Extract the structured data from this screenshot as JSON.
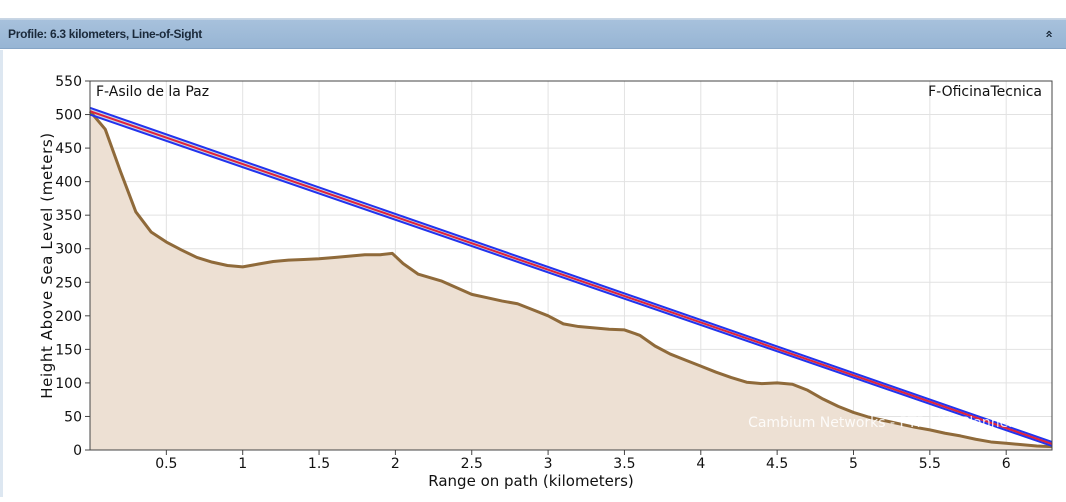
{
  "panel": {
    "title": "Profile: 6.3 kilometers, Line-of-Sight",
    "collapse_icon": "double-chevron-up-icon",
    "collapse_glyph": "»"
  },
  "chart_data": {
    "type": "area",
    "xlabel": "Range on path (kilometers)",
    "ylabel": "Height Above Sea Level (meters)",
    "xlim": [
      0,
      6.3
    ],
    "ylim": [
      0,
      550
    ],
    "xticks": [
      "0.5",
      "1",
      "1.5",
      "2",
      "2.5",
      "3",
      "3.5",
      "4",
      "4.5",
      "5",
      "5.5",
      "6"
    ],
    "yticks": [
      "0",
      "50",
      "100",
      "150",
      "200",
      "250",
      "300",
      "350",
      "400",
      "450",
      "500",
      "550"
    ],
    "grid": true,
    "site_left": "F-Asilo de la Paz",
    "site_right": "F-OficinaTecnica",
    "watermark": "Cambium Networks - PTP LINKPlanner",
    "series": [
      {
        "role": "terrain",
        "color": "#8f6a3a",
        "fill": "#ede0d3",
        "x": [
          0,
          0.1,
          0.2,
          0.3,
          0.4,
          0.5,
          0.6,
          0.7,
          0.8,
          0.9,
          1.0,
          1.1,
          1.2,
          1.3,
          1.4,
          1.5,
          1.6,
          1.7,
          1.8,
          1.9,
          1.98,
          2.05,
          2.15,
          2.3,
          2.4,
          2.5,
          2.6,
          2.7,
          2.8,
          2.9,
          3.0,
          3.1,
          3.2,
          3.3,
          3.4,
          3.5,
          3.6,
          3.7,
          3.8,
          3.9,
          4.0,
          4.1,
          4.2,
          4.3,
          4.4,
          4.5,
          4.6,
          4.7,
          4.8,
          4.9,
          5.0,
          5.1,
          5.2,
          5.3,
          5.4,
          5.5,
          5.6,
          5.7,
          5.8,
          5.9,
          6.0,
          6.1,
          6.2,
          6.3
        ],
        "y": [
          505,
          478,
          415,
          355,
          325,
          310,
          298,
          287,
          280,
          275,
          273,
          277,
          281,
          283,
          284,
          285,
          287,
          289,
          291,
          291,
          293,
          278,
          262,
          252,
          242,
          232,
          227,
          222,
          218,
          209,
          200,
          188,
          184,
          182,
          180,
          179,
          171,
          155,
          143,
          134,
          125,
          116,
          108,
          101,
          99,
          100,
          98,
          89,
          76,
          65,
          56,
          49,
          44,
          39,
          34,
          30,
          25,
          21,
          16,
          12,
          10,
          8,
          6,
          5
        ]
      },
      {
        "role": "fresnel-upper",
        "color": "#2233ee",
        "x": [
          0,
          6.3
        ],
        "y": [
          510,
          12
        ]
      },
      {
        "role": "fresnel-lower",
        "color": "#2233ee",
        "x": [
          0,
          6.3
        ],
        "y": [
          500,
          6
        ]
      },
      {
        "role": "line-of-sight",
        "color": "#e0233a",
        "x": [
          0,
          6.3
        ],
        "y": [
          505,
          9
        ]
      }
    ]
  }
}
